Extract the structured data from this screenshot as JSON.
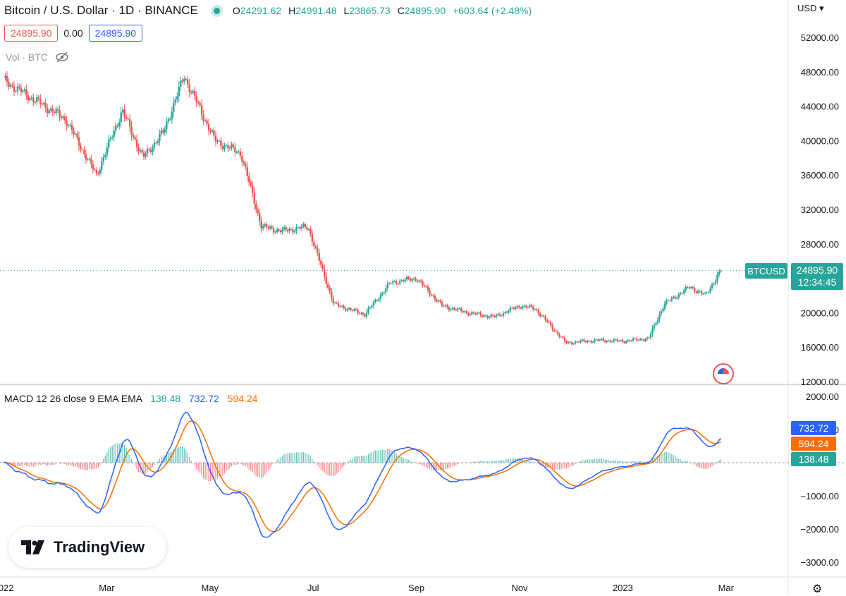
{
  "header": {
    "title": "Bitcoin / U.S. Dollar · 1D · BINANCE",
    "ohlc": [
      {
        "label": "O",
        "value": "24291.62"
      },
      {
        "label": "H",
        "value": "24991.48"
      },
      {
        "label": "L",
        "value": "23865.73"
      },
      {
        "label": "C",
        "value": "24895.90"
      }
    ],
    "change": "+603.64 (+2.48%)",
    "bid": "24895.90",
    "spread": "0.00",
    "ask": "24895.90",
    "vol_label": "Vol · BTC",
    "currency": "USD"
  },
  "tags": {
    "symbol": "BTCUSD",
    "last_price": "24895.90",
    "countdown": "12:34:45",
    "macd_value": "732.72",
    "signal_value": "594.24",
    "hist_value": "138.48"
  },
  "macd_legend": {
    "label": "MACD 12 26 close 9 EMA EMA",
    "hist": "138.48",
    "macd": "732.72",
    "signal": "594.24"
  },
  "logo": "TradingView",
  "colors": {
    "up": "#26a69a",
    "down": "#ef5350",
    "macd": "#2962ff",
    "signal": "#ff6d00",
    "grid": "#e0e3eb"
  },
  "chart_data": [
    {
      "type": "candlestick",
      "title": "Bitcoin / U.S. Dollar · 1D · BINANCE",
      "ylim": [
        12000,
        54000
      ],
      "yticks": [
        12000,
        16000,
        20000,
        24000,
        28000,
        32000,
        36000,
        40000,
        44000,
        48000,
        52000
      ],
      "ytick_labels": [
        "12000.00",
        "16000.00",
        "20000.00",
        "",
        "28000.00",
        "32000.00",
        "36000.00",
        "40000.00",
        "44000.00",
        "48000.00",
        "52000.00"
      ],
      "xticks": [
        "2022",
        "Mar",
        "May",
        "Jul",
        "Sep",
        "Nov",
        "2023",
        "Mar"
      ],
      "last_price": 24895.9,
      "x_month_index": [
        0,
        1.2,
        1.8,
        2.3,
        2.7,
        3.1,
        3.5,
        4.1,
        4.6,
        5.0,
        5.4,
        5.9,
        6.4,
        7.0,
        7.5,
        8.0,
        8.5,
        9.0,
        9.5,
        10.0,
        10.3,
        10.9,
        11.5,
        12.0,
        12.5,
        12.8,
        13.3,
        13.6,
        13.9
      ],
      "close_points": [
        47000,
        42500,
        36000,
        43500,
        38000,
        41000,
        47500,
        40000,
        38500,
        30000,
        29500,
        30000,
        21000,
        19800,
        23500,
        24000,
        20800,
        20000,
        19500,
        20800,
        20500,
        16500,
        16800,
        16700,
        17000,
        21000,
        23000,
        22000,
        24895.9
      ]
    },
    {
      "type": "macd",
      "title": "MACD 12 26 close 9 EMA EMA",
      "ylim": [
        -3000,
        2000
      ],
      "yticks": [
        -3000,
        -2000,
        -1000,
        0,
        1000,
        2000
      ],
      "ytick_labels": [
        "−3000.00",
        "−2000.00",
        "−1000.00",
        "0.00",
        "1000.00",
        "2000.00"
      ],
      "series": [
        {
          "name": "MACD",
          "color": "#2962ff",
          "last": 732.72
        },
        {
          "name": "Signal",
          "color": "#ff6d00",
          "last": 594.24
        },
        {
          "name": "Histogram",
          "last": 138.48
        }
      ]
    }
  ]
}
